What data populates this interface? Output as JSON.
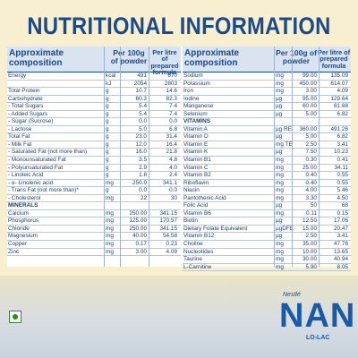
{
  "title": "NUTRITIONAL INFORMATION",
  "left_table": {
    "headers": [
      "Approximate composition",
      "Per 100g of powder",
      "Per litre of prepared formula"
    ],
    "rows": [
      {
        "name": "Energy",
        "unit": "kcal",
        "v1": "491",
        "v2": "670"
      },
      {
        "name": "",
        "unit": "kJ",
        "v1": "2054",
        "v2": "2803"
      },
      {
        "name": "Total Protein",
        "unit": "g",
        "v1": "10.7",
        "v2": "14.6"
      },
      {
        "name": "Carbohydrate",
        "unit": "g",
        "v1": "60.3",
        "v2": "82.3"
      },
      {
        "name": "- Total Sugars",
        "unit": "g",
        "v1": "5.4",
        "v2": "7.4"
      },
      {
        "name": "- Added Sugars",
        "unit": "g",
        "v1": "5.4",
        "v2": "7.4"
      },
      {
        "name": "- Sugar (Sucrose)",
        "unit": "g",
        "v1": "0.0",
        "v2": "0.0"
      },
      {
        "name": "- Lactose",
        "unit": "g",
        "v1": "5.0",
        "v2": "6.8"
      },
      {
        "name": "Total Fat",
        "unit": "g",
        "v1": "23.0",
        "v2": "31.4"
      },
      {
        "name": "- Milk Fat",
        "unit": "g",
        "v1": "12.0",
        "v2": "16.4"
      },
      {
        "name": "- Saturated Fat (not more than)",
        "unit": "g",
        "v1": "16.0",
        "v2": "21.8"
      },
      {
        "name": "- Monounsaturated Fat",
        "unit": "g",
        "v1": "3.5",
        "v2": "4.8"
      },
      {
        "name": "- Polyunsaturated Fat",
        "unit": "g",
        "v1": "2.9",
        "v2": "4.0"
      },
      {
        "name": "- Linoleic Acid",
        "unit": "g",
        "v1": "1.8",
        "v2": "2.4"
      },
      {
        "name": "- α- Linolenic acid",
        "unit": "mg",
        "v1": "250.0",
        "v2": "341.1"
      },
      {
        "name": "- Trans Fat (not more than)*",
        "unit": "g",
        "v1": "0.0",
        "v2": "0.0"
      },
      {
        "name": "- Cholesterol",
        "unit": "mg",
        "v1": "22",
        "v2": "30"
      },
      {
        "name": "MINERALS",
        "unit": "",
        "v1": "",
        "v2": "",
        "section": true
      },
      {
        "name": "Calcium",
        "unit": "mg",
        "v1": "250.00",
        "v2": "341.15"
      },
      {
        "name": "Phosphorus",
        "unit": "mg",
        "v1": "125.00",
        "v2": "170.57"
      },
      {
        "name": "Chloride",
        "unit": "mg",
        "v1": "250.00",
        "v2": "341.15"
      },
      {
        "name": "Magnesium",
        "unit": "mg",
        "v1": "40.00",
        "v2": "54.58"
      },
      {
        "name": "Copper",
        "unit": "mg",
        "v1": "0.17",
        "v2": "0.23"
      },
      {
        "name": "Zinc",
        "unit": "mg",
        "v1": "3.00",
        "v2": "4.09"
      }
    ]
  },
  "right_table": {
    "headers": [
      "Approximate composition",
      "Per 100g of powder",
      "Per litre of prepared formula"
    ],
    "rows": [
      {
        "name": "Sodium",
        "unit": "mg",
        "v1": "99.00",
        "v2": "135.09"
      },
      {
        "name": "Potassium",
        "unit": "mg",
        "v1": "450.00",
        "v2": "614.07"
      },
      {
        "name": "Iron",
        "unit": "mg",
        "v1": "3.00",
        "v2": "4.09"
      },
      {
        "name": "Iodine",
        "unit": "µg",
        "v1": "95.00",
        "v2": "129.64"
      },
      {
        "name": "Manganese",
        "unit": "µg",
        "v1": "60.00",
        "v2": "81.88"
      },
      {
        "name": "Selenium",
        "unit": "µg",
        "v1": "5.00",
        "v2": "6.82"
      },
      {
        "name": "VITAMINS",
        "unit": "",
        "v1": "",
        "v2": "",
        "section": true
      },
      {
        "name": "Vitamin A",
        "unit": "µg RE",
        "v1": "360.00",
        "v2": "491.26"
      },
      {
        "name": "Vitamin D",
        "unit": "µg",
        "v1": "5.00",
        "v2": "6.82"
      },
      {
        "name": "Vitamin E",
        "unit": "mg TE",
        "v1": "2.50",
        "v2": "3.41"
      },
      {
        "name": "Vitamin K",
        "unit": "µg",
        "v1": "7.50",
        "v2": "10.23"
      },
      {
        "name": "Vitamin B1",
        "unit": "mg",
        "v1": "0.30",
        "v2": "0.41"
      },
      {
        "name": "Vitamin C",
        "unit": "mg",
        "v1": "25.00",
        "v2": "34.11"
      },
      {
        "name": "Vitamin B2",
        "unit": "mg",
        "v1": "0.40",
        "v2": "0.55"
      },
      {
        "name": "Riboflavin",
        "unit": "mg",
        "v1": "0.40",
        "v2": "0.55"
      },
      {
        "name": "Niacin",
        "unit": "mg",
        "v1": "4.00",
        "v2": "5.46"
      },
      {
        "name": "Pantothenic Acid",
        "unit": "mg",
        "v1": "3.30",
        "v2": "4.50"
      },
      {
        "name": "Folic Acid",
        "unit": "µg",
        "v1": "50",
        "v2": "68"
      },
      {
        "name": "Vitamin B6",
        "unit": "mg",
        "v1": "0.11",
        "v2": "0.15"
      },
      {
        "name": "Biotin",
        "unit": "µg",
        "v1": "12.50",
        "v2": "17.06"
      },
      {
        "name": "Dietary Folate Equivalent",
        "unit": "µgDFE",
        "v1": "15.00",
        "v2": "20.47"
      },
      {
        "name": "Vitamin B12",
        "unit": "µg",
        "v1": "2.50",
        "v2": "3.41"
      },
      {
        "name": "Choline",
        "unit": "mg",
        "v1": "35.00",
        "v2": "47.76"
      },
      {
        "name": "Nucleotides",
        "unit": "mg",
        "v1": "10.00",
        "v2": "13.65"
      },
      {
        "name": "Taurine",
        "unit": "mg",
        "v1": "30.00",
        "v2": "40.94"
      },
      {
        "name": "L-Carnitine",
        "unit": "mg",
        "v1": "5.90",
        "v2": "8.05"
      }
    ]
  },
  "brand": {
    "maker": "Nestlé",
    "name": "NAN",
    "variant": "LO-LAC"
  },
  "veg_mark": "vegetarian-symbol-icon",
  "colors": {
    "background": "#f7efcf",
    "title_blue": "#1a4a8a",
    "header_bg": "#d9e4f0",
    "veg_green": "#2a8a2a"
  }
}
